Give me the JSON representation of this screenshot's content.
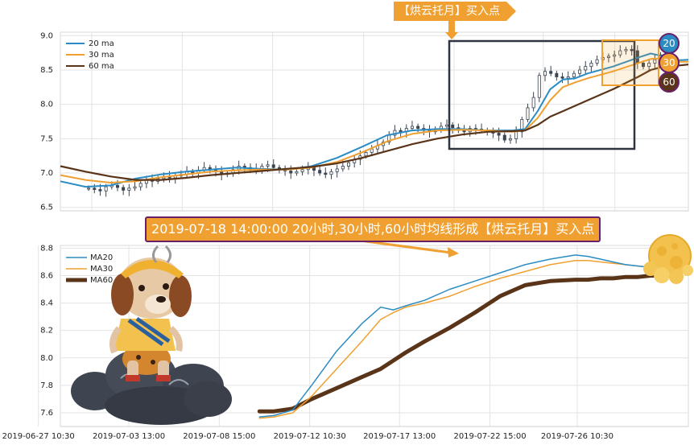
{
  "annotations": {
    "top_tag": "【烘云托月】买入点",
    "banner": "2019-07-18 14:00:00 20小时,30小时,60小时均线形成【烘云托月】买入点",
    "badges": [
      "20",
      "30",
      "60"
    ]
  },
  "colors": {
    "ma20": "#2b8cc4",
    "ma30": "#f0a030",
    "ma60": "#5a3418",
    "candle": "#3a4452",
    "box": "#2f3540",
    "highlight": "#f0a030",
    "badge_border": "#6a1f6a"
  },
  "chart_data": [
    {
      "type": "line",
      "subtype": "candlestick with moving averages",
      "ylim": [
        6.45,
        9.05
      ],
      "y_ticks": [
        "6.5",
        "7.0",
        "7.5",
        "8.0",
        "8.5",
        "9.0"
      ],
      "legend": [
        "20 ma",
        "30 ma",
        "60 ma"
      ],
      "legend_position": "top-left",
      "grid": true,
      "x_range": [
        0,
        100
      ],
      "candles_close": [
        6.78,
        6.76,
        6.74,
        6.8,
        6.82,
        6.79,
        6.75,
        6.78,
        6.8,
        6.85,
        6.9,
        6.88,
        6.92,
        6.95,
        6.93,
        6.96,
        6.98,
        7.02,
        7.0,
        7.04,
        7.08,
        7.05,
        7.02,
        6.98,
        7.0,
        7.05,
        7.1,
        7.08,
        7.04,
        7.06,
        7.1,
        7.12,
        7.08,
        7.05,
        7.03,
        7.0,
        7.02,
        7.05,
        7.08,
        7.04,
        7.0,
        6.98,
        7.02,
        7.06,
        7.1,
        7.15,
        7.2,
        7.25,
        7.3,
        7.35,
        7.4,
        7.45,
        7.55,
        7.62,
        7.6,
        7.65,
        7.68,
        7.65,
        7.62,
        7.6,
        7.64,
        7.68,
        7.7,
        7.66,
        7.62,
        7.6,
        7.65,
        7.64,
        7.62,
        7.6,
        7.58,
        7.55,
        7.48,
        7.5,
        7.6,
        7.78,
        7.95,
        8.1,
        8.42,
        8.48,
        8.45,
        8.4,
        8.38,
        8.4,
        8.45,
        8.5,
        8.55,
        8.6,
        8.65,
        8.68,
        8.7,
        8.72,
        8.78,
        8.8,
        8.78,
        8.6,
        8.55,
        8.6,
        8.65,
        8.72,
        8.85
      ],
      "series": [
        {
          "name": "20 ma",
          "x": [
            0,
            4,
            8,
            12,
            16,
            20,
            24,
            28,
            32,
            36,
            40,
            44,
            48,
            52,
            56,
            60,
            64,
            68,
            72,
            74,
            76,
            78,
            80,
            82,
            84,
            88,
            92,
            94,
            96,
            98,
            100
          ],
          "values": [
            6.88,
            6.8,
            6.82,
            6.92,
            6.98,
            7.02,
            7.05,
            7.08,
            7.06,
            7.05,
            7.1,
            7.22,
            7.38,
            7.55,
            7.62,
            7.64,
            7.64,
            7.62,
            7.62,
            7.64,
            7.9,
            8.22,
            8.36,
            8.38,
            8.45,
            8.55,
            8.68,
            8.74,
            8.7,
            8.64,
            8.65
          ]
        },
        {
          "name": "30 ma",
          "x": [
            0,
            4,
            8,
            12,
            16,
            20,
            24,
            28,
            32,
            36,
            40,
            44,
            48,
            52,
            56,
            60,
            64,
            68,
            72,
            74,
            76,
            78,
            80,
            82,
            84,
            88,
            92,
            94,
            96,
            98,
            100
          ],
          "values": [
            6.97,
            6.9,
            6.86,
            6.88,
            6.94,
            6.98,
            7.02,
            7.04,
            7.05,
            7.05,
            7.08,
            7.16,
            7.3,
            7.46,
            7.57,
            7.62,
            7.63,
            7.62,
            7.6,
            7.62,
            7.8,
            8.06,
            8.25,
            8.32,
            8.38,
            8.48,
            8.6,
            8.66,
            8.67,
            8.62,
            8.62
          ]
        },
        {
          "name": "60 ma",
          "x": [
            0,
            4,
            8,
            12,
            16,
            20,
            24,
            28,
            32,
            36,
            40,
            44,
            48,
            52,
            56,
            60,
            64,
            68,
            72,
            74,
            76,
            78,
            80,
            82,
            84,
            88,
            92,
            94,
            96,
            98,
            100
          ],
          "values": [
            7.1,
            7.02,
            6.95,
            6.9,
            6.9,
            6.93,
            6.97,
            7.0,
            7.03,
            7.06,
            7.09,
            7.14,
            7.22,
            7.32,
            7.42,
            7.5,
            7.56,
            7.6,
            7.61,
            7.62,
            7.7,
            7.82,
            7.9,
            7.98,
            8.06,
            8.22,
            8.4,
            8.5,
            8.55,
            8.56,
            8.58
          ]
        }
      ]
    },
    {
      "type": "line",
      "ylim": [
        7.5,
        8.82
      ],
      "y_ticks": [
        "7.6",
        "7.8",
        "8.0",
        "8.2",
        "8.4",
        "8.6",
        "8.8"
      ],
      "x_tick_labels": [
        "2019-06-27 10:30",
        "2019-07-03 13:00",
        "2019-07-08 15:00",
        "2019-07-12 10:30",
        "2019-07-17 13:00",
        "2019-07-22 15:00",
        "2019-07-26 10:30"
      ],
      "legend": [
        "MA20",
        "MA30",
        "MA60"
      ],
      "legend_position": "top-left",
      "grid": true,
      "x_range": [
        0,
        100
      ],
      "series": [
        {
          "name": "MA20",
          "x": [
            31.7,
            34,
            37,
            40,
            44,
            48,
            51,
            53,
            55,
            58,
            62,
            66,
            70,
            74,
            78,
            82,
            84,
            86,
            88,
            90,
            92,
            94,
            96
          ],
          "values": [
            7.57,
            7.58,
            7.62,
            7.8,
            8.05,
            8.25,
            8.37,
            8.35,
            8.38,
            8.42,
            8.5,
            8.56,
            8.62,
            8.68,
            8.72,
            8.75,
            8.74,
            8.72,
            8.7,
            8.68,
            8.67,
            8.66,
            8.66
          ]
        },
        {
          "name": "MA30",
          "x": [
            31.7,
            34,
            37,
            40,
            44,
            48,
            51,
            53,
            55,
            58,
            62,
            66,
            70,
            74,
            78,
            82,
            84,
            86,
            88,
            90,
            92,
            94,
            96
          ],
          "values": [
            7.56,
            7.57,
            7.6,
            7.72,
            7.92,
            8.12,
            8.28,
            8.33,
            8.37,
            8.4,
            8.45,
            8.52,
            8.58,
            8.63,
            8.68,
            8.71,
            8.71,
            8.7,
            8.69,
            8.68,
            8.67,
            8.66,
            8.66
          ]
        },
        {
          "name": "MA60",
          "x": [
            31.7,
            34,
            37,
            40,
            44,
            48,
            51,
            53,
            55,
            58,
            62,
            66,
            70,
            74,
            78,
            82,
            84,
            86,
            88,
            90,
            92,
            94,
            96
          ],
          "values": [
            7.61,
            7.61,
            7.63,
            7.7,
            7.78,
            7.86,
            7.92,
            7.98,
            8.04,
            8.12,
            8.22,
            8.33,
            8.45,
            8.53,
            8.56,
            8.57,
            8.57,
            8.58,
            8.58,
            8.59,
            8.59,
            8.6,
            8.6
          ]
        }
      ]
    }
  ]
}
